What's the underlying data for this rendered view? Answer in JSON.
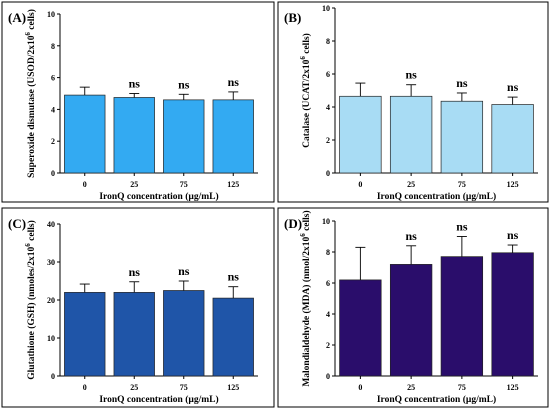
{
  "chart_data": [
    {
      "type": "bar",
      "panel": "(A)",
      "xlabel": "IronQ concentration (µg/mL)",
      "ylabel": "Superoxide dismutase (USOD/2x10",
      "ylabel_sup": "6",
      "ylabel_tail": " cells)",
      "categories": [
        "0",
        "25",
        "75",
        "125"
      ],
      "values": [
        4.9,
        4.75,
        4.6,
        4.6
      ],
      "errors": [
        0.5,
        0.25,
        0.35,
        0.5
      ],
      "significance": [
        "",
        "ns",
        "ns",
        "ns"
      ],
      "ylim": [
        0,
        10
      ],
      "yticks": [
        "0",
        "2",
        "4",
        "6",
        "8",
        "10"
      ],
      "bar_color": "#33aaf2"
    },
    {
      "type": "bar",
      "panel": "(B)",
      "xlabel": "IronQ concentration (µg/mL)",
      "ylabel": "Catalase (UCAT/2x10",
      "ylabel_sup": "6",
      "ylabel_tail": " cells)",
      "categories": [
        "0",
        "25",
        "75",
        "125"
      ],
      "values": [
        4.65,
        4.65,
        4.35,
        4.15
      ],
      "errors": [
        0.8,
        0.7,
        0.5,
        0.45
      ],
      "significance": [
        "",
        "ns",
        "ns",
        "ns"
      ],
      "ylim": [
        0,
        10
      ],
      "yticks": [
        "0",
        "2",
        "4",
        "6",
        "8",
        "10"
      ],
      "bar_color": "#a8dcf4"
    },
    {
      "type": "bar",
      "panel": "(C)",
      "xlabel": "IronQ concentration (µg/mL)",
      "ylabel": "Glutathione (GSH) (nmoles/2x10",
      "ylabel_sup": "6",
      "ylabel_tail": " cells)",
      "categories": [
        "0",
        "25",
        "75",
        "125"
      ],
      "values": [
        22,
        22,
        22.5,
        20.5
      ],
      "errors": [
        2.2,
        2.8,
        2.5,
        3.0
      ],
      "significance": [
        "",
        "ns",
        "ns",
        "ns"
      ],
      "ylim": [
        0,
        40
      ],
      "yticks": [
        "0",
        "10",
        "20",
        "30",
        "40"
      ],
      "bar_color": "#1f55a8"
    },
    {
      "type": "bar",
      "panel": "(D)",
      "xlabel": "IronQ concentration (µg/mL)",
      "ylabel": "Malondialdehyde (MDA) (nmol/2x10",
      "ylabel_sup": "6",
      "ylabel_tail": " cells)",
      "categories": [
        "0",
        "25",
        "75",
        "125"
      ],
      "values": [
        6.2,
        7.2,
        7.7,
        7.95
      ],
      "errors": [
        2.1,
        1.2,
        1.3,
        0.5
      ],
      "significance": [
        "",
        "ns",
        "ns",
        "ns"
      ],
      "ylim": [
        0,
        10
      ],
      "yticks": [
        "0",
        "2",
        "4",
        "6",
        "8",
        "10"
      ],
      "bar_color": "#2a0d6b"
    }
  ]
}
